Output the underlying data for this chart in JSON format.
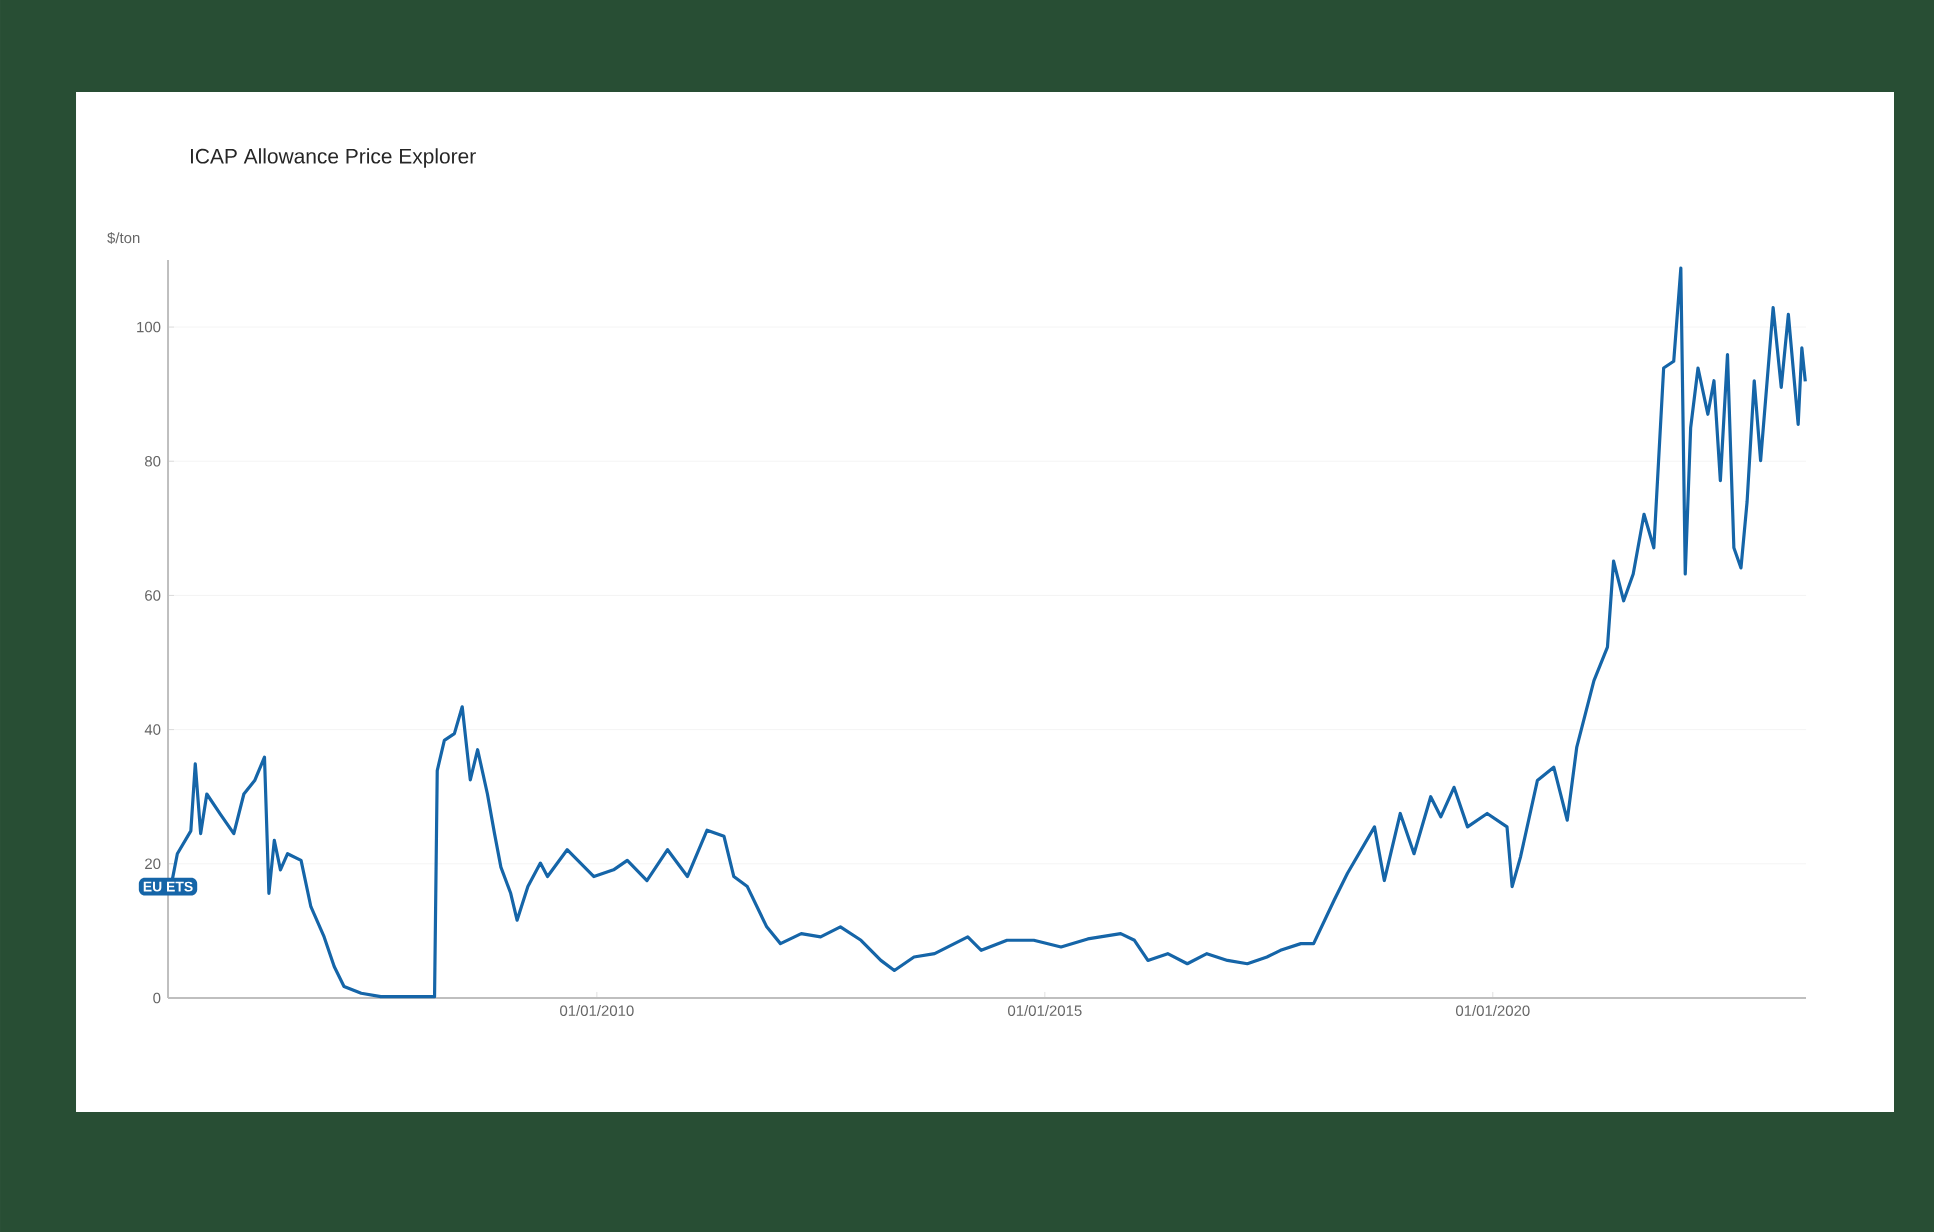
{
  "chart_data": {
    "type": "line",
    "title": "ICAP Allowance Price Explorer",
    "ylabel": "$/ton",
    "x": [
      "2005-04-01",
      "2005-04-27",
      "2005-06-21",
      "2005-07-09",
      "2005-07-31",
      "2005-08-25",
      "2005-10-19",
      "2005-12-13",
      "2006-01-23",
      "2006-03-08",
      "2006-04-17",
      "2006-05-05",
      "2006-05-27",
      "2006-06-21",
      "2006-07-20",
      "2006-09-13",
      "2006-10-23",
      "2006-12-16",
      "2007-01-26",
      "2007-03-07",
      "2007-05-16",
      "2007-08-04",
      "2008-03-10",
      "2008-03-21",
      "2008-04-19",
      "2008-05-30",
      "2008-07-01",
      "2008-08-03",
      "2008-09-02",
      "2008-10-12",
      "2008-11-10",
      "2008-12-06",
      "2009-01-15",
      "2009-02-10",
      "2009-03-26",
      "2009-05-16",
      "2009-06-14",
      "2009-09-02",
      "2009-12-20",
      "2010-03-10",
      "2010-05-05",
      "2010-07-24",
      "2010-10-16",
      "2011-01-05",
      "2011-03-26",
      "2011-06-03",
      "2011-07-13",
      "2011-09-06",
      "2011-11-24",
      "2012-01-19",
      "2012-04-13",
      "2012-07-01",
      "2012-09-20",
      "2012-12-13",
      "2013-03-04",
      "2013-04-28",
      "2013-07-17",
      "2013-10-09",
      "2014-02-21",
      "2014-04-17",
      "2014-07-31",
      "2014-11-17",
      "2015-03-08",
      "2015-06-25",
      "2015-11-06",
      "2016-01-01",
      "2016-02-25",
      "2016-05-16",
      "2016-08-04",
      "2016-10-23",
      "2017-01-15",
      "2017-04-06",
      "2017-06-25",
      "2017-08-19",
      "2017-11-10",
      "2018-01-01",
      "2018-03-26",
      "2018-05-19",
      "2018-09-06",
      "2018-10-16",
      "2018-12-20",
      "2019-02-14",
      "2019-04-23",
      "2019-06-03",
      "2019-07-27",
      "2019-09-20",
      "2019-12-09",
      "2020-02-28",
      "2020-03-20",
      "2020-04-23",
      "2020-07-01",
      "2020-09-06",
      "2020-10-31",
      "2020-12-09",
      "2021-02-17",
      "2021-04-13",
      "2021-05-08",
      "2021-06-18",
      "2021-07-27",
      "2021-09-09",
      "2021-10-19",
      "2021-11-28",
      "2022-01-08",
      "2022-02-06",
      "2022-02-24",
      "2022-03-18",
      "2022-04-17",
      "2022-05-27",
      "2022-06-21",
      "2022-07-17",
      "2022-08-15",
      "2022-09-10",
      "2022-10-09",
      "2022-11-03",
      "2022-12-02",
      "2022-12-28",
      "2023-02-17",
      "2023-03-22",
      "2023-04-20",
      "2023-05-30",
      "2023-06-14",
      "2023-06-28"
    ],
    "series": [
      {
        "name": "EU ETS",
        "color": "#1565a8",
        "values": [
          16.6,
          21.5,
          24.9,
          34.9,
          24.5,
          30.4,
          27.4,
          24.5,
          30.4,
          32.4,
          35.9,
          15.6,
          23.5,
          19.1,
          21.5,
          20.5,
          13.6,
          9.1,
          4.7,
          1.7,
          0.7,
          0.2,
          0.2,
          33.9,
          38.4,
          39.4,
          43.4,
          32.5,
          37,
          30.4,
          24.5,
          19.5,
          15.6,
          11.6,
          16.6,
          20.1,
          18.1,
          22.1,
          18.1,
          19.1,
          20.5,
          17.5,
          22.1,
          18.1,
          25.0,
          24.1,
          18.1,
          16.6,
          10.6,
          8.1,
          9.6,
          9.1,
          10.6,
          8.6,
          5.6,
          4.1,
          6.1,
          6.6,
          9.1,
          7.1,
          8.6,
          8.6,
          7.6,
          8.8,
          9.6,
          8.6,
          5.6,
          6.6,
          5.1,
          6.6,
          5.6,
          5.1,
          6.1,
          7.1,
          8.1,
          8.1,
          14.6,
          18.6,
          25.5,
          17.5,
          27.5,
          21.5,
          30.0,
          27.0,
          31.4,
          25.5,
          27.5,
          25.5,
          16.6,
          21.0,
          32.4,
          34.4,
          26.5,
          37.4,
          47.3,
          52.3,
          65.1,
          59.2,
          63.2,
          72.1,
          67.1,
          93.9,
          94.9,
          108.8,
          63.2,
          85.0,
          93.9,
          87.0,
          92.0,
          77.1,
          95.9,
          67.1,
          64.1,
          74.0,
          92.0,
          80.1,
          102.9,
          91.0,
          101.9,
          85.5,
          96.9,
          91.9
        ]
      }
    ],
    "xlim": [
      "2005-03-20",
      "2023-07-01"
    ],
    "xticks": [
      {
        "value": "2010-01-01",
        "label": "01/01/2010"
      },
      {
        "value": "2015-01-01",
        "label": "01/01/2015"
      },
      {
        "value": "2020-01-01",
        "label": "01/01/2020"
      }
    ],
    "ylim": [
      0,
      110
    ],
    "yticks": [
      0,
      20,
      40,
      60,
      80,
      100
    ],
    "grid": "y",
    "legend": false,
    "marker": "none",
    "line_style": "solid"
  }
}
